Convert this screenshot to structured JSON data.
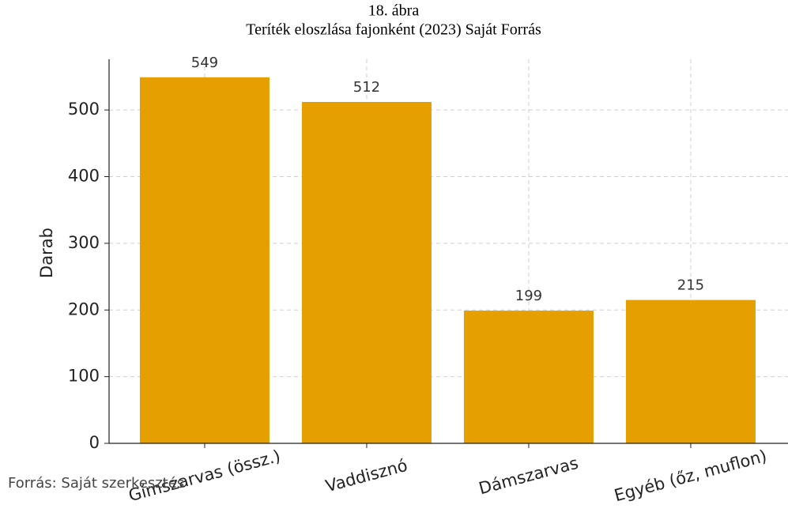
{
  "chart_data": {
    "type": "bar",
    "figure_label": "18. ábra",
    "title": "Teríték eloszlása fajonként (2023) Saját Forrás",
    "ylabel": "Darab",
    "categories": [
      "Gímszarvas (össz.)",
      "Vaddisznó",
      "Dámszarvas",
      "Egyéb (őz, muflon)"
    ],
    "values": [
      549,
      512,
      199,
      215
    ],
    "color": "#e69f00",
    "ylim": [
      0,
      576
    ],
    "yticks": [
      0,
      100,
      200,
      300,
      400,
      500
    ],
    "grid": true,
    "source": "Forrás: Saját szerkesztés"
  }
}
